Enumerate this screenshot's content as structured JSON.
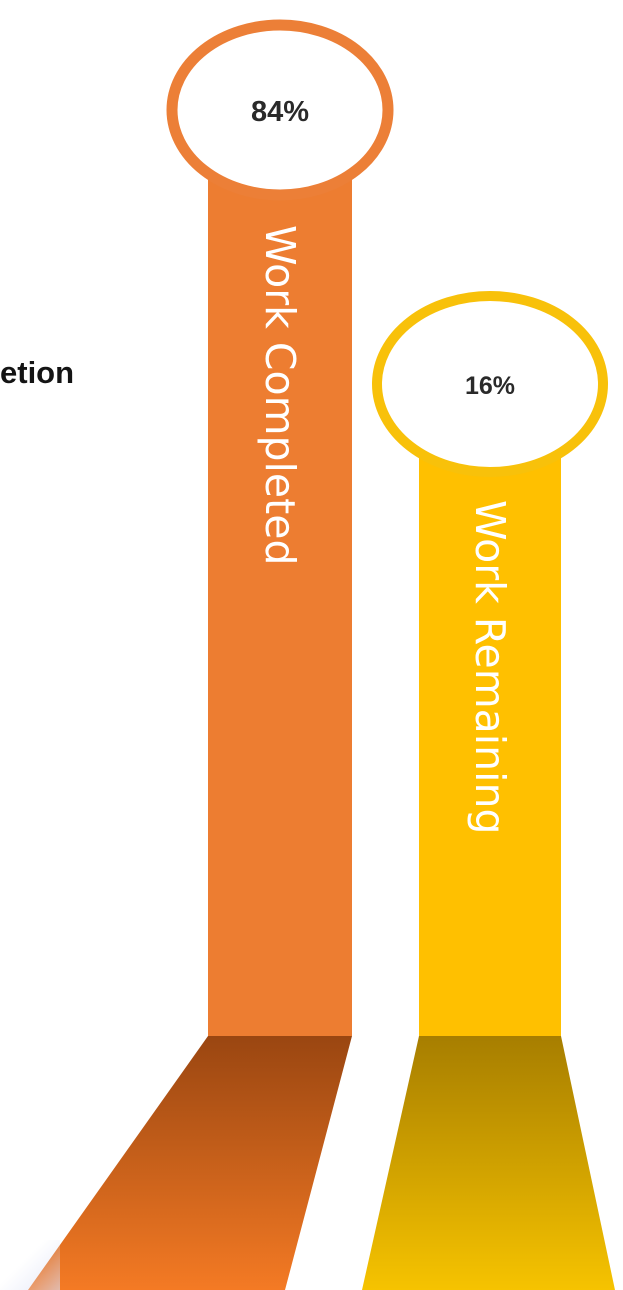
{
  "page": {
    "title_fragment": "etion"
  },
  "colors": {
    "completed_main": "#ED7D31",
    "completed_ring": "#EC7F37",
    "completed_base_top": "#9A4611",
    "completed_base_bottom": "#F47A24",
    "remaining_main": "#FFC000",
    "remaining_ring": "#F8C10A",
    "remaining_base_top": "#A77E00",
    "remaining_base_bottom": "#F6C300",
    "bubble_fill": "#FFFFFF"
  },
  "chart_data": {
    "type": "bar",
    "title": "",
    "categories": [
      "Work Completed",
      "Work Remaining"
    ],
    "values": [
      84,
      16
    ],
    "value_labels": [
      "84%",
      "16%"
    ],
    "unit": "%",
    "ylim": [
      0,
      100
    ],
    "legend": "none",
    "grid": false
  }
}
